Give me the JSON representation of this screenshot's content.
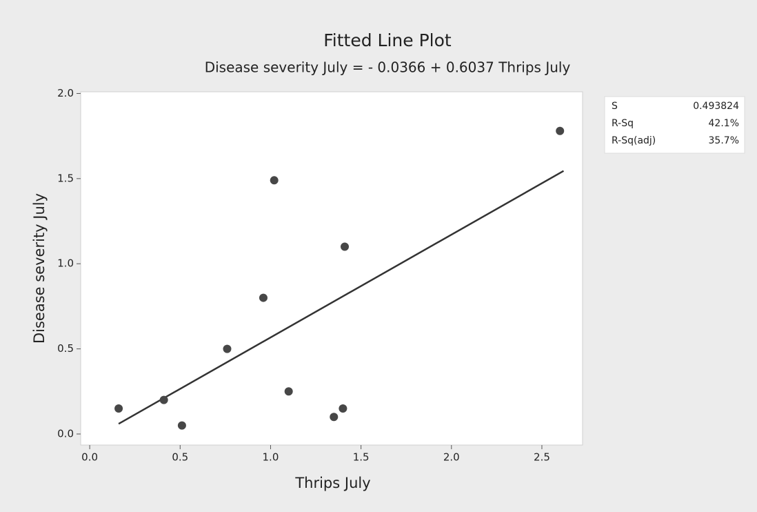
{
  "chart_data": {
    "type": "scatter",
    "title": "Fitted Line Plot",
    "subtitle": "Disease severity July = - 0.0366 + 0.6037 Thrips July",
    "x_label": "Thrips July",
    "y_label": "Disease severity July",
    "x": [
      0.16,
      0.41,
      0.51,
      0.76,
      0.96,
      1.02,
      1.1,
      1.35,
      1.4,
      1.41,
      2.6
    ],
    "y": [
      0.15,
      0.2,
      0.05,
      0.5,
      0.8,
      1.49,
      0.25,
      0.1,
      0.15,
      1.1,
      1.78
    ],
    "color": "#474747",
    "fit": {
      "intercept": -0.0366,
      "slope": 0.6037,
      "x_range": [
        0.16,
        2.62
      ],
      "color": "#333333"
    },
    "xlim": [
      -0.05,
      2.725
    ],
    "ylim": [
      -0.065,
      2.01
    ],
    "xticks": [
      {
        "value": 0,
        "label": "0.0"
      },
      0.5,
      {
        "value": 1,
        "label": "1.0"
      },
      1.5,
      {
        "value": 2,
        "label": "2.0"
      },
      2.5
    ],
    "yticks": [
      {
        "value": 0,
        "label": "0.0"
      },
      0.5,
      {
        "value": 1,
        "label": "1.0"
      },
      1.5,
      {
        "value": 2,
        "label": "2.0"
      }
    ],
    "stats": [
      [
        "S",
        "0.493824"
      ],
      [
        "R-Sq",
        "42.1%"
      ],
      [
        "R-Sq(adj)",
        "35.7%"
      ]
    ]
  }
}
